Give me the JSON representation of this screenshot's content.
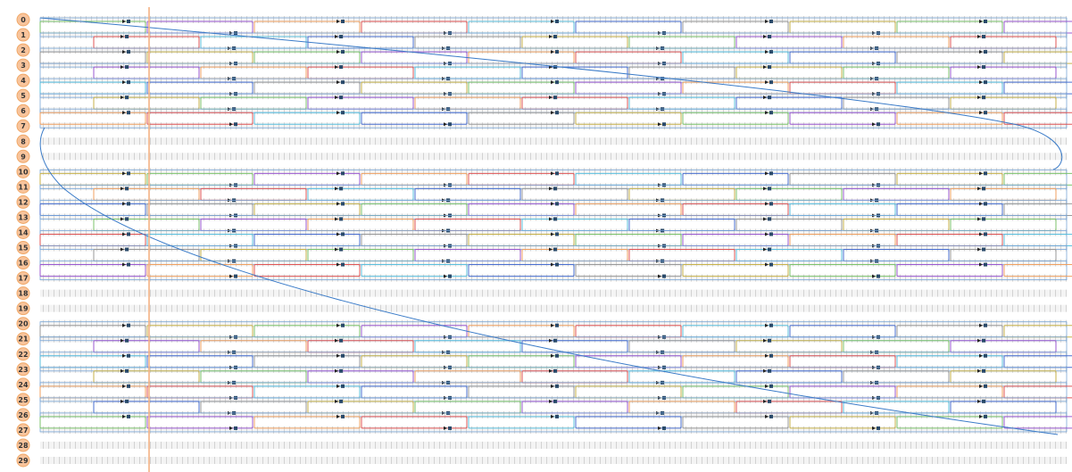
{
  "rows": [
    "0",
    "1",
    "2",
    "3",
    "4",
    "5",
    "6",
    "7",
    "8",
    "9",
    "10",
    "11",
    "12",
    "13",
    "14",
    "15",
    "16",
    "17",
    "18",
    "19",
    "20",
    "21",
    "22",
    "23",
    "24",
    "25",
    "26",
    "27",
    "28",
    "29"
  ]
}
